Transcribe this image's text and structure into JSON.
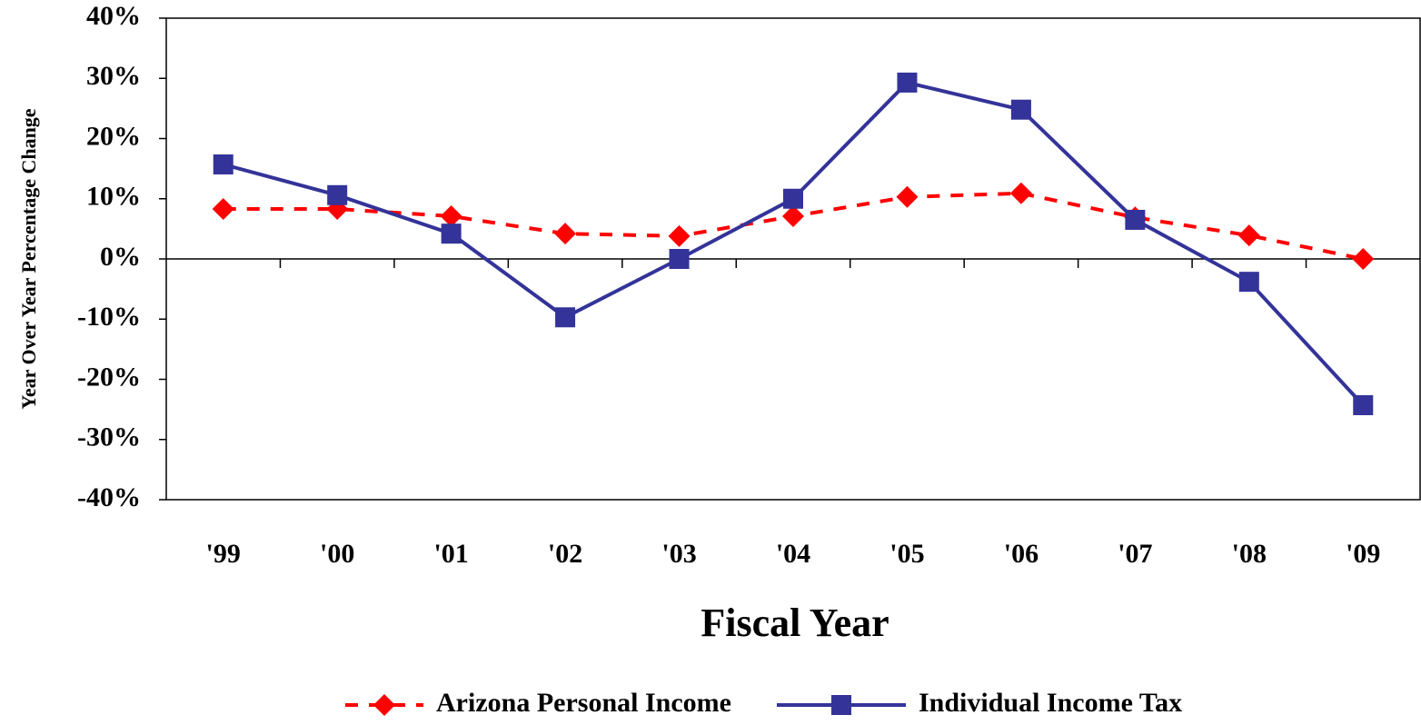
{
  "chart_data": {
    "type": "line",
    "axis_label_y": "Year Over Year Percentage Change",
    "axis_label_x": "Fiscal Year",
    "categories": [
      "'99",
      "'00",
      "'01",
      "'02",
      "'03",
      "'04",
      "'05",
      "'06",
      "'07",
      "'08",
      "'09"
    ],
    "series": [
      {
        "name": "Arizona Personal Income",
        "color": "#ff0000",
        "linestyle": "dashed",
        "marker": "diamond",
        "values": [
          8.3,
          8.3,
          7.1,
          4.2,
          3.8,
          7.1,
          10.3,
          10.9,
          6.9,
          3.9,
          0
        ]
      },
      {
        "name": "Individual Income Tax",
        "color": "#333399",
        "linestyle": "solid",
        "marker": "square",
        "values": [
          15.7,
          10.6,
          4.2,
          -9.7,
          0,
          10.0,
          29.3,
          24.8,
          6.5,
          -3.8,
          -24.3
        ]
      }
    ],
    "ylim": [
      -40,
      40
    ],
    "yticks": [
      {
        "value": 40,
        "label": "40%"
      },
      {
        "value": 30,
        "label": "30%"
      },
      {
        "value": 20,
        "label": "20%"
      },
      {
        "value": 10,
        "label": "10%"
      },
      {
        "value": 0,
        "label": "0%"
      },
      {
        "value": -10,
        "label": "-10%"
      },
      {
        "value": -20,
        "label": "-20%"
      },
      {
        "value": -30,
        "label": "-30%"
      },
      {
        "value": -40,
        "label": "-40%"
      }
    ],
    "legend": "bottom"
  }
}
